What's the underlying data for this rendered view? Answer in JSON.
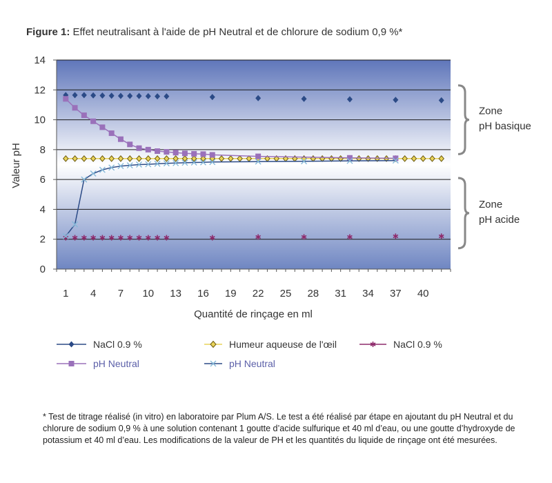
{
  "header": {
    "figure_number": "Figure 1:",
    "figure_caption": "Effet neutralisant à l'aide de pH Neutral et de chlorure de sodium 0,9 %*"
  },
  "chart_data": {
    "type": "line",
    "title": "Effet neutralisant à l'aide de pH Neutral et de chlorure de sodium 0,9 %*",
    "xlabel": "Quantité de rinçage en ml",
    "ylabel": "Valeur pH",
    "ylim": [
      0,
      14
    ],
    "yticks": [
      0,
      2,
      4,
      6,
      8,
      10,
      12,
      14
    ],
    "xlim": [
      0,
      43
    ],
    "xtick_labels": [
      "1",
      "4",
      "7",
      "10",
      "13",
      "16",
      "19",
      "22",
      "25",
      "28",
      "31",
      "34",
      "37",
      "40"
    ],
    "series": [
      {
        "name": "NaCl 0.9 %",
        "color": "#2b4a86",
        "marker": "diamond",
        "line": false,
        "points": [
          [
            1,
            11.65
          ],
          [
            2,
            11.65
          ],
          [
            3,
            11.65
          ],
          [
            4,
            11.63
          ],
          [
            5,
            11.62
          ],
          [
            6,
            11.61
          ],
          [
            7,
            11.6
          ],
          [
            8,
            11.6
          ],
          [
            9,
            11.59
          ],
          [
            10,
            11.58
          ],
          [
            11,
            11.57
          ],
          [
            12,
            11.57
          ],
          [
            17,
            11.52
          ],
          [
            22,
            11.45
          ],
          [
            27,
            11.4
          ],
          [
            32,
            11.37
          ],
          [
            37,
            11.33
          ],
          [
            42,
            11.3
          ]
        ]
      },
      {
        "name": "Humeur aqueuse de l'œil",
        "color": "#e9d35a",
        "marker": "diamond-outline",
        "line": true,
        "points": [
          [
            1,
            7.4
          ],
          [
            2,
            7.4
          ],
          [
            3,
            7.4
          ],
          [
            4,
            7.4
          ],
          [
            5,
            7.4
          ],
          [
            6,
            7.4
          ],
          [
            7,
            7.4
          ],
          [
            8,
            7.4
          ],
          [
            9,
            7.4
          ],
          [
            10,
            7.4
          ],
          [
            11,
            7.4
          ],
          [
            12,
            7.4
          ],
          [
            13,
            7.4
          ],
          [
            14,
            7.4
          ],
          [
            15,
            7.4
          ],
          [
            16,
            7.4
          ],
          [
            17,
            7.4
          ],
          [
            18,
            7.4
          ],
          [
            19,
            7.4
          ],
          [
            20,
            7.4
          ],
          [
            21,
            7.4
          ],
          [
            22,
            7.4
          ],
          [
            23,
            7.4
          ],
          [
            24,
            7.4
          ],
          [
            25,
            7.4
          ],
          [
            26,
            7.4
          ],
          [
            27,
            7.4
          ],
          [
            28,
            7.4
          ],
          [
            29,
            7.4
          ],
          [
            30,
            7.4
          ],
          [
            31,
            7.4
          ],
          [
            32,
            7.4
          ],
          [
            33,
            7.4
          ],
          [
            34,
            7.4
          ],
          [
            35,
            7.4
          ],
          [
            36,
            7.4
          ],
          [
            37,
            7.4
          ],
          [
            38,
            7.4
          ],
          [
            39,
            7.4
          ],
          [
            40,
            7.4
          ],
          [
            41,
            7.4
          ],
          [
            42,
            7.4
          ]
        ]
      },
      {
        "name": "NaCl 0.9 %",
        "color": "#8e2a6b",
        "marker": "asterisk",
        "line": false,
        "points": [
          [
            1,
            2.1
          ],
          [
            2,
            2.1
          ],
          [
            3,
            2.1
          ],
          [
            4,
            2.1
          ],
          [
            5,
            2.1
          ],
          [
            6,
            2.1
          ],
          [
            7,
            2.1
          ],
          [
            8,
            2.1
          ],
          [
            9,
            2.1
          ],
          [
            10,
            2.1
          ],
          [
            11,
            2.1
          ],
          [
            12,
            2.1
          ],
          [
            17,
            2.1
          ],
          [
            22,
            2.15
          ],
          [
            27,
            2.15
          ],
          [
            32,
            2.15
          ],
          [
            37,
            2.2
          ],
          [
            42,
            2.2
          ]
        ]
      },
      {
        "name": "pH Neutral",
        "color": "#9a71ba",
        "marker": "square",
        "line": true,
        "points": [
          [
            1,
            11.4
          ],
          [
            2,
            10.8
          ],
          [
            3,
            10.3
          ],
          [
            4,
            9.9
          ],
          [
            5,
            9.5
          ],
          [
            6,
            9.1
          ],
          [
            7,
            8.7
          ],
          [
            8,
            8.35
          ],
          [
            9,
            8.1
          ],
          [
            10,
            8.0
          ],
          [
            11,
            7.9
          ],
          [
            12,
            7.85
          ],
          [
            13,
            7.8
          ],
          [
            14,
            7.75
          ],
          [
            15,
            7.72
          ],
          [
            16,
            7.7
          ],
          [
            17,
            7.65
          ],
          [
            22,
            7.55
          ],
          [
            32,
            7.45
          ],
          [
            37,
            7.42
          ]
        ]
      },
      {
        "name": "pH Neutral",
        "color": "#86b9d8",
        "line_color": "#2b4a86",
        "marker": "x",
        "line": true,
        "points": [
          [
            1,
            2.2
          ],
          [
            2,
            3.0
          ],
          [
            3,
            6.0
          ],
          [
            4,
            6.4
          ],
          [
            5,
            6.65
          ],
          [
            6,
            6.8
          ],
          [
            7,
            6.9
          ],
          [
            8,
            6.95
          ],
          [
            9,
            7.0
          ],
          [
            10,
            7.02
          ],
          [
            11,
            7.05
          ],
          [
            12,
            7.08
          ],
          [
            13,
            7.1
          ],
          [
            14,
            7.12
          ],
          [
            15,
            7.14
          ],
          [
            16,
            7.15
          ],
          [
            17,
            7.17
          ],
          [
            22,
            7.2
          ],
          [
            27,
            7.22
          ],
          [
            32,
            7.25
          ],
          [
            37,
            7.27
          ]
        ]
      }
    ],
    "annotations": [
      {
        "label_line1": "Zone",
        "label_line2": "pH basique",
        "range": [
          7.7,
          12.3
        ]
      },
      {
        "label_line1": "Zone",
        "label_line2": "pH acide",
        "range": [
          1.4,
          6.1
        ]
      }
    ],
    "legend_position": "bottom"
  },
  "footnote": "* Test de titrage réalisé (in vitro) en laboratoire par Plum A/S. Le test a été réalisé par étape en ajoutant du pH Neutral et du chlorure de sodium 0,9 % à une solution contenant 1 goutte d’acide sulfurique et 40 ml d’eau, ou une goutte d’hydroxyde de potassium et 40 ml d’eau. Les modifications de la valeur de PH et les quantités du liquide de rinçage ont été mesurées."
}
